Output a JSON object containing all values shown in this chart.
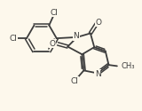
{
  "bg_color": "#fdf8ec",
  "line_color": "#3d3d3d",
  "lw": 1.3,
  "fs": 6.5,
  "xlim": [
    0,
    1
  ],
  "ylim": [
    0,
    1
  ]
}
